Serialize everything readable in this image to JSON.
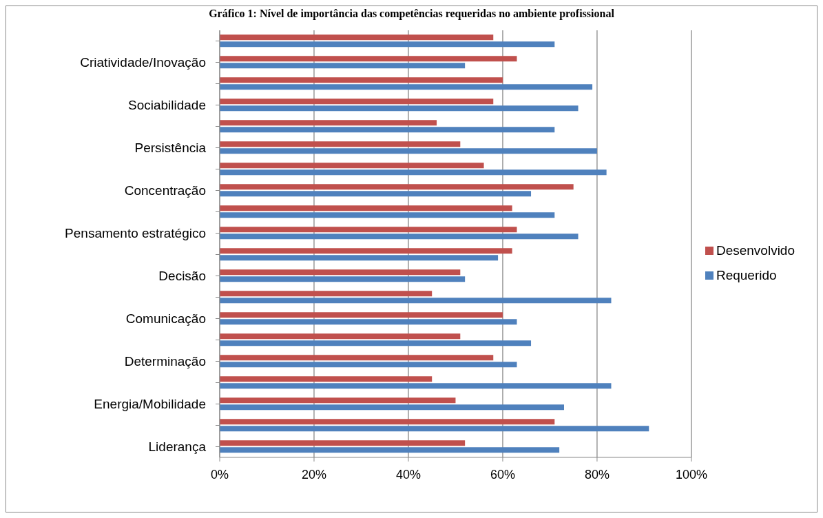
{
  "chart_data": {
    "type": "bar",
    "orientation": "horizontal",
    "title": "Gráfico 1: Nível de importância das competências requeridas no ambiente profissional",
    "categories": [
      null,
      "Criatividade/Inovação",
      null,
      "Sociabilidade",
      null,
      "Persistência",
      null,
      "Concentração",
      null,
      "Pensamento estratégico",
      null,
      "Decisão",
      null,
      "Comunicação",
      null,
      "Determinação",
      null,
      "Energia/Mobilidade",
      null,
      "Liderança"
    ],
    "series": [
      {
        "name": "Desenvolvido",
        "color": "#c0504d",
        "values": [
          58,
          63,
          60,
          58,
          46,
          51,
          56,
          75,
          62,
          63,
          62,
          51,
          45,
          60,
          51,
          58,
          45,
          50,
          71,
          52
        ]
      },
      {
        "name": "Requerido",
        "color": "#4f81bd",
        "values": [
          71,
          52,
          79,
          76,
          71,
          80,
          82,
          66,
          71,
          76,
          59,
          52,
          83,
          63,
          66,
          63,
          83,
          73,
          91,
          72
        ]
      }
    ],
    "xlim": [
      0,
      100
    ],
    "xticks": [
      {
        "value": 0,
        "label": "0%"
      },
      {
        "value": 20,
        "label": "20%"
      },
      {
        "value": 40,
        "label": "40%"
      },
      {
        "value": 60,
        "label": "60%"
      },
      {
        "value": 80,
        "label": "80%"
      },
      {
        "value": 100,
        "label": "100%"
      }
    ],
    "grid": "x",
    "legend": "right"
  }
}
